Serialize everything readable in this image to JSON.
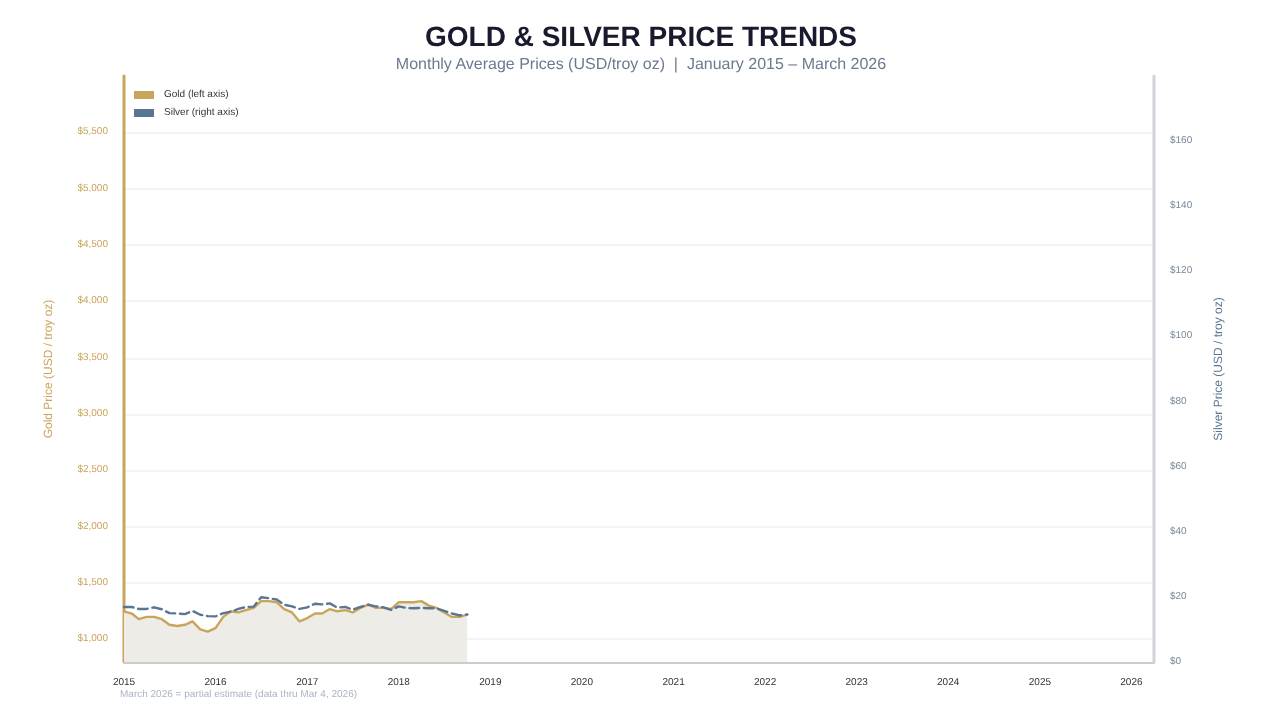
{
  "chart_data": {
    "type": "line",
    "title": "GOLD & SILVER PRICE TRENDS",
    "subtitle": "Monthly Average Prices (USD/troy oz)  |  January 2015 – March 2026",
    "ylabel": "Gold Price (USD / troy oz)",
    "y2label": "Silver Price (USD / troy oz)",
    "annotations": [
      "March 2026 = partial estimate (data thru Mar 4, 2026)"
    ],
    "x": [
      "2015-01",
      "2015-02",
      "2015-03",
      "2015-04",
      "2015-05",
      "2015-06",
      "2015-07",
      "2015-08",
      "2015-09",
      "2015-10",
      "2015-11",
      "2015-12",
      "2016-01",
      "2016-02",
      "2016-03",
      "2016-04",
      "2016-05",
      "2016-06",
      "2016-07",
      "2016-08",
      "2016-09",
      "2016-10",
      "2016-11",
      "2016-12",
      "2017-01",
      "2017-02",
      "2017-03",
      "2017-04",
      "2017-05",
      "2017-06",
      "2017-07",
      "2017-08",
      "2017-09",
      "2017-10",
      "2017-11",
      "2017-12",
      "2018-01",
      "2018-02",
      "2018-03",
      "2018-04",
      "2018-05",
      "2018-06",
      "2018-07",
      "2018-08",
      "2018-09",
      "2018-10"
    ],
    "series": [
      {
        "name": "Gold (left axis)",
        "type": "area",
        "color": "#c9a45c",
        "line_style": "solid",
        "values": [
          1250,
          1230,
          1180,
          1200,
          1200,
          1180,
          1130,
          1120,
          1130,
          1160,
          1090,
          1070,
          1100,
          1200,
          1250,
          1240,
          1260,
          1280,
          1340,
          1340,
          1330,
          1270,
          1240,
          1160,
          1190,
          1230,
          1230,
          1270,
          1250,
          1260,
          1240,
          1280,
          1310,
          1280,
          1280,
          1270,
          1330,
          1330,
          1330,
          1340,
          1300,
          1280,
          1240,
          1200,
          1200,
          1220
        ]
      },
      {
        "name": "Silver (right axis)",
        "axis": "y2",
        "color": "#5a7590",
        "line_style": "dashed",
        "values": [
          16.9,
          16.9,
          16.3,
          16.3,
          16.8,
          16.2,
          15.0,
          14.9,
          14.7,
          15.7,
          14.5,
          14.1,
          14.0,
          15.0,
          15.4,
          16.3,
          16.9,
          17.0,
          19.9,
          19.6,
          19.2,
          17.6,
          17.1,
          16.3,
          16.8,
          17.9,
          17.7,
          18.0,
          16.7,
          16.9,
          16.1,
          16.9,
          17.6,
          17.1,
          16.8,
          16.0,
          17.1,
          16.6,
          16.5,
          16.6,
          16.5,
          16.5,
          15.7,
          14.9,
          14.3,
          14.6
        ]
      }
    ],
    "xlim": [
      "2015-01",
      "2026-04"
    ],
    "xticks": [
      "2015",
      "2016",
      "2017",
      "2018",
      "2019",
      "2020",
      "2021",
      "2022",
      "2023",
      "2024",
      "2025",
      "2026"
    ],
    "ylim": [
      800,
      6000
    ],
    "yticks": [
      {
        "value": 1000,
        "label": "$1,000"
      },
      {
        "value": 1500,
        "label": "$1,500"
      },
      {
        "value": 2000,
        "label": "$2,000"
      },
      {
        "value": 2500,
        "label": "$2,500"
      },
      {
        "value": 3000,
        "label": "$3,000"
      },
      {
        "value": 3500,
        "label": "$3,500"
      },
      {
        "value": 4000,
        "label": "$4,000"
      },
      {
        "value": 4500,
        "label": "$4,500"
      },
      {
        "value": 5000,
        "label": "$5,000"
      },
      {
        "value": 5500,
        "label": "$5,500"
      }
    ],
    "y2lim": [
      0,
      180
    ],
    "y2ticks": [
      {
        "value": 0,
        "label": "$0"
      },
      {
        "value": 20,
        "label": "$20"
      },
      {
        "value": 40,
        "label": "$40"
      },
      {
        "value": 60,
        "label": "$60"
      },
      {
        "value": 80,
        "label": "$80"
      },
      {
        "value": 100,
        "label": "$100"
      },
      {
        "value": 120,
        "label": "$120"
      },
      {
        "value": 140,
        "label": "$140"
      },
      {
        "value": 160,
        "label": "$160"
      }
    ],
    "grid": "y",
    "legend": "top left",
    "marker": "none"
  }
}
